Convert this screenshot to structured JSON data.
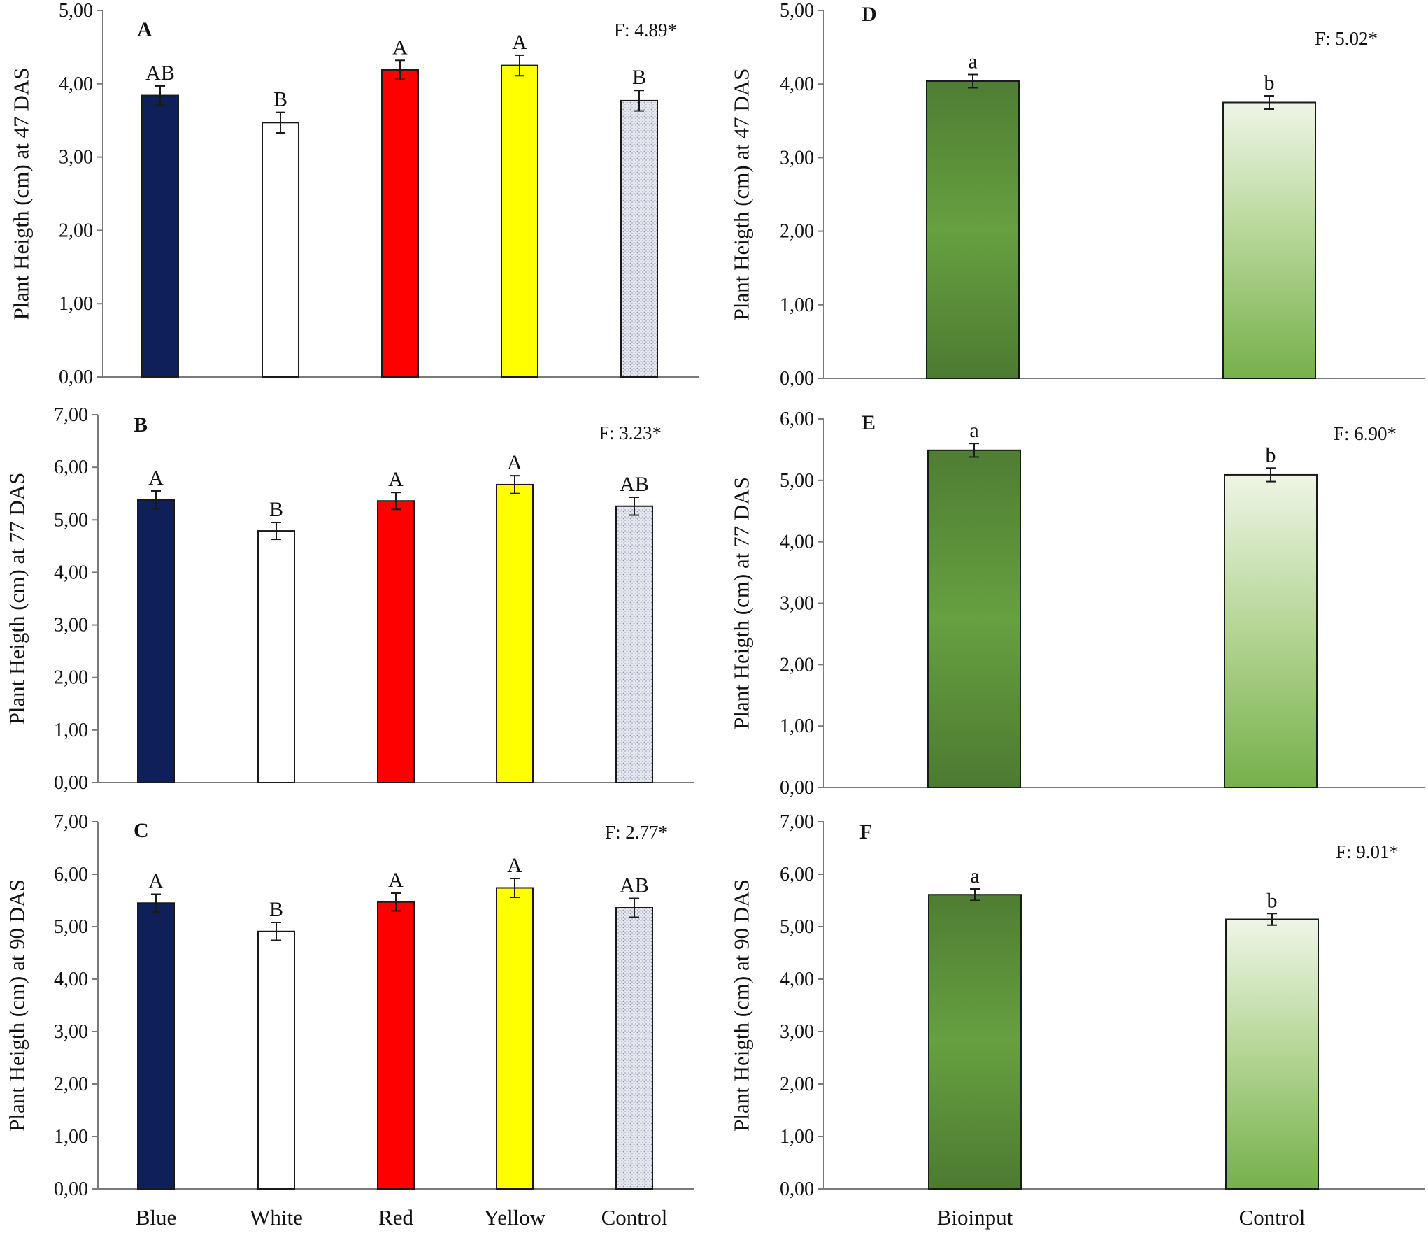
{
  "chart_data": [
    {
      "panel": "A",
      "type": "bar",
      "ylabel": "Plant Heigth (cm) at 47 DAS",
      "ylim": [
        0,
        5
      ],
      "tick_step": 1,
      "tick_labels": [
        "0,00",
        "1,00",
        "2,00",
        "3,00",
        "4,00",
        "5,00"
      ],
      "f_stat": "F: 4.89*",
      "categories": [
        "Blue",
        "White",
        "Red",
        "Yellow",
        "Control"
      ],
      "show_categories": false,
      "values": [
        3.84,
        3.47,
        4.19,
        4.25,
        3.77
      ],
      "errors": [
        0.13,
        0.14,
        0.13,
        0.14,
        0.14
      ],
      "letters": [
        "AB",
        "B",
        "A",
        "A",
        "B"
      ],
      "fills": [
        "navy",
        "white",
        "red",
        "yellow",
        "dotted"
      ]
    },
    {
      "panel": "D",
      "type": "bar",
      "ylabel": "Plant Heigth (cm) at 47 DAS",
      "ylim": [
        0,
        5
      ],
      "tick_step": 1,
      "tick_labels": [
        "0,00",
        "1,00",
        "2,00",
        "3,00",
        "4,00",
        "5,00"
      ],
      "f_stat": "F: 5.02*",
      "categories": [
        "Bioinput",
        "Control"
      ],
      "show_categories": false,
      "values": [
        4.04,
        3.75
      ],
      "errors": [
        0.09,
        0.09
      ],
      "letters": [
        "a",
        "b"
      ],
      "fills": [
        "darkgreen",
        "lightgreen"
      ]
    },
    {
      "panel": "B",
      "type": "bar",
      "ylabel": "Plant Heigth (cm) at 77 DAS",
      "ylim": [
        0,
        7
      ],
      "tick_step": 1,
      "tick_labels": [
        "0,00",
        "1,00",
        "2,00",
        "3,00",
        "4,00",
        "5,00",
        "6,00",
        "7,00"
      ],
      "f_stat": "F: 3.23*",
      "categories": [
        "Blue",
        "White",
        "Red",
        "Yellow",
        "Control"
      ],
      "show_categories": false,
      "values": [
        5.38,
        4.79,
        5.36,
        5.67,
        5.26
      ],
      "errors": [
        0.17,
        0.16,
        0.16,
        0.17,
        0.17
      ],
      "letters": [
        "A",
        "B",
        "A",
        "A",
        "AB"
      ],
      "fills": [
        "navy",
        "white",
        "red",
        "yellow",
        "dotted"
      ]
    },
    {
      "panel": "E",
      "type": "bar",
      "ylabel": "Plant Heigth (cm) at 77 DAS",
      "ylim": [
        0,
        6
      ],
      "tick_step": 1,
      "tick_labels": [
        "0,00",
        "1,00",
        "2,00",
        "3,00",
        "4,00",
        "5,00",
        "6,00"
      ],
      "f_stat": "F: 6.90*",
      "categories": [
        "Bioinput",
        "Control"
      ],
      "show_categories": false,
      "values": [
        5.49,
        5.09
      ],
      "errors": [
        0.11,
        0.11
      ],
      "letters": [
        "a",
        "b"
      ],
      "fills": [
        "darkgreen",
        "lightgreen"
      ]
    },
    {
      "panel": "C",
      "type": "bar",
      "ylabel": "Plant Heigth (cm) at 90 DAS",
      "ylim": [
        0,
        7
      ],
      "tick_step": 1,
      "tick_labels": [
        "0,00",
        "1,00",
        "2,00",
        "3,00",
        "4,00",
        "5,00",
        "6,00",
        "7,00"
      ],
      "f_stat": "F: 2.77*",
      "categories": [
        "Blue",
        "White",
        "Red",
        "Yellow",
        "Control"
      ],
      "show_categories": true,
      "values": [
        5.45,
        4.91,
        5.47,
        5.74,
        5.36
      ],
      "errors": [
        0.17,
        0.17,
        0.17,
        0.18,
        0.18
      ],
      "letters": [
        "A",
        "B",
        "A",
        "A",
        "AB"
      ],
      "fills": [
        "navy",
        "white",
        "red",
        "yellow",
        "dotted"
      ]
    },
    {
      "panel": "F",
      "type": "bar",
      "ylabel": "Plant Heigth (cm) at 90 DAS",
      "ylim": [
        0,
        7
      ],
      "tick_step": 1,
      "tick_labels": [
        "0,00",
        "1,00",
        "2,00",
        "3,00",
        "4,00",
        "5,00",
        "6,00",
        "7,00"
      ],
      "f_stat": "F: 9.01*",
      "categories": [
        "Bioinput",
        "Control"
      ],
      "show_categories": true,
      "values": [
        5.61,
        5.14
      ],
      "errors": [
        0.11,
        0.11
      ],
      "letters": [
        "a",
        "b"
      ],
      "fills": [
        "darkgreen",
        "lightgreen"
      ]
    }
  ]
}
